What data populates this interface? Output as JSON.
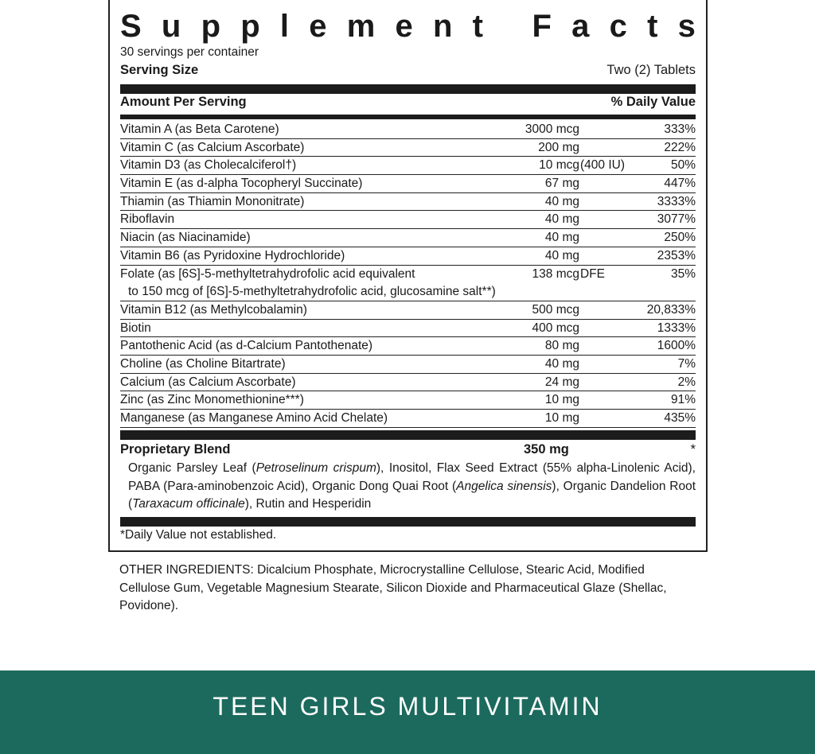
{
  "panel": {
    "title": "Supplement Facts",
    "servings_per_container": "30 servings per container",
    "serving_size_label": "Serving Size",
    "serving_size_value": "Two (2) Tablets",
    "amount_header": "Amount Per Serving",
    "dv_header": "% Daily Value",
    "rows": [
      {
        "name": "Vitamin A (as Beta Carotene)",
        "amount": "3000 mcg",
        "dv": "333%"
      },
      {
        "name": "Vitamin C (as Calcium Ascorbate)",
        "amount": "200 mg",
        "dv": "222%"
      },
      {
        "name": "Vitamin D3 (as Cholecalciferol†)",
        "amount": "10 mcg (400 IU)",
        "dv": "50%"
      },
      {
        "name": "Vitamin E (as d-alpha Tocopheryl Succinate)",
        "amount": "67 mg",
        "dv": "447%"
      },
      {
        "name": "Thiamin (as Thiamin Mononitrate)",
        "amount": "40 mg",
        "dv": "3333%"
      },
      {
        "name": "Riboflavin",
        "amount": "40 mg",
        "dv": "3077%"
      },
      {
        "name": "Niacin (as Niacinamide)",
        "amount": "40 mg",
        "dv": "250%"
      },
      {
        "name": "Vitamin B6 (as Pyridoxine Hydrochloride)",
        "amount": "40 mg",
        "dv": "2353%"
      },
      {
        "name": "Folate (as [6S]-5-methyltetrahydrofolic acid equivalent",
        "name_line2": "to 150 mcg of [6S]-5-methyltetrahydrofolic acid, glucosamine salt**)",
        "amount": "138 mcg DFE",
        "dv": "35%"
      },
      {
        "name": "Vitamin B12 (as Methylcobalamin)",
        "amount": "500 mcg",
        "dv": "20,833%"
      },
      {
        "name": "Biotin",
        "amount": "400 mcg",
        "dv": "1333%"
      },
      {
        "name": "Pantothenic Acid (as d-Calcium Pantothenate)",
        "amount": "80 mg",
        "dv": "1600%"
      },
      {
        "name": "Choline (as Choline Bitartrate)",
        "amount": "40 mg",
        "dv": "7%"
      },
      {
        "name": "Calcium (as Calcium Ascorbate)",
        "amount": "24 mg",
        "dv": "2%"
      },
      {
        "name": "Zinc (as Zinc Monomethionine***)",
        "amount": "10 mg",
        "dv": "91%"
      },
      {
        "name": "Manganese (as Manganese Amino Acid Chelate)",
        "amount": "10 mg",
        "dv": "435%"
      }
    ],
    "blend": {
      "name": "Proprietary Blend",
      "amount": "350 mg",
      "dv": "*",
      "ingredients": "Organic Parsley Leaf (Petroselinum crispum), Inositol, Flax Seed Extract (55% alpha-Linolenic Acid), PABA (Para-aminobenzoic Acid), Organic Dong Quai Root (Angelica sinensis), Organic Dandelion Root (Taraxacum officinale), Rutin and Hesperidin"
    },
    "footnote": "*Daily Value not established."
  },
  "other_ingredients": "OTHER INGREDIENTS: Dicalcium Phosphate, Microcrystalline Cellulose, Stearic Acid, Modified Cellulose Gum, Vegetable Magnesium Stearate, Silicon Dioxide and Pharmaceutical Glaze (Shellac, Povidone).",
  "banner": {
    "label": "TEEN GIRLS MULTIVITAMIN",
    "color": "#1c6a5d"
  }
}
